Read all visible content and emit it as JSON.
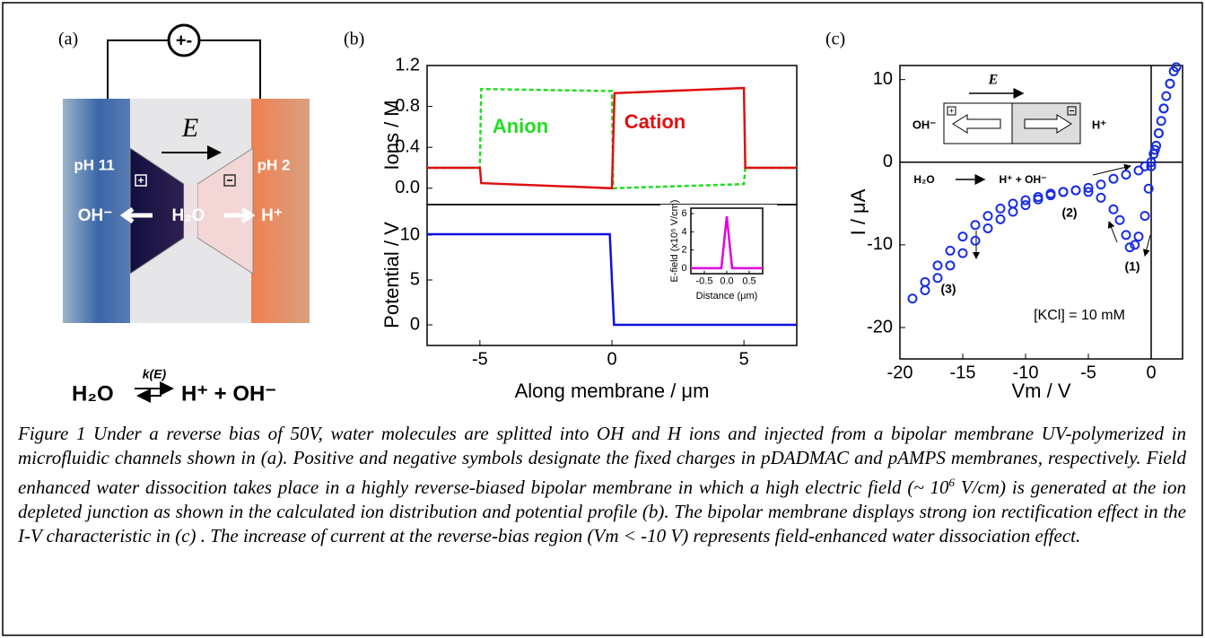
{
  "figure": {
    "panel_labels": [
      "(a)",
      "(b)",
      "(c)"
    ],
    "panel_a": {
      "left_ph": "pH 11",
      "right_ph": "pH 2",
      "field": "E",
      "left_ion": "OH⁻",
      "center": "H₂O",
      "right_ion": "H⁺",
      "equation": {
        "left": "H₂O",
        "rate": "k(E)",
        "right": "H⁺ + OH⁻"
      }
    },
    "caption": [
      "Figure 1 Under a reverse bias of 50V, water molecules are splitted into OH and H ions and injected from a bipolar membrane UV-polymerized in microfluidic channels shown in (a). Positive and negative symbols designate the fixed charges in pDADMAC and pAMPS membranes, respectively. Field enhanced water dissocition takes place in a highly reverse-biased bipolar membrane in which a high electric field (~ 10",
      "6",
      " V/cm) is generated at the ion depleted junction as shown in the calculated ion distribution and potential profile (b). The bipolar membrane displays strong ion rectification effect in the I-V characteristic in (c) . The increase of current at the reverse-bias region (Vm < -10 V) represents field-enhanced water dissociation effect."
    ]
  },
  "chart_data": [
    {
      "type": "line",
      "ylabel": "Ions / M",
      "xlim": [
        -7,
        7
      ],
      "ylim": [
        -0.16,
        1.2
      ],
      "yticks": [
        {
          "value": 0,
          "label": "0.0"
        },
        0.4,
        0.8,
        1.2
      ],
      "series": [
        {
          "name": "Anion",
          "color": "#22dd22",
          "dashed": true,
          "x": [
            -7,
            -5,
            -4.95,
            0,
            0.05,
            5,
            5.05,
            7
          ],
          "values": [
            0.2,
            0.2,
            0.97,
            0.95,
            0,
            0.04,
            0.2,
            0.2
          ]
        },
        {
          "name": "Cation",
          "color": "#e01010",
          "dashed": false,
          "x": [
            -7,
            -5,
            -4.95,
            0,
            0.1,
            5,
            5.05,
            7
          ],
          "values": [
            0.2,
            0.2,
            0.05,
            0,
            0.93,
            0.98,
            0.2,
            0.2
          ]
        }
      ]
    },
    {
      "type": "line",
      "xlabel": "Along membrane / μm",
      "ylabel": "Potential / V",
      "xlim": [
        -7,
        7
      ],
      "ylim": [
        -2.3,
        13.4
      ],
      "xticks": [
        -5,
        0,
        5
      ],
      "yticks": [
        0,
        5,
        10
      ],
      "series": [
        {
          "color": "#1010e0",
          "dashed": false,
          "x": [
            -7,
            -0.08,
            0.08,
            7
          ],
          "values": [
            10.1,
            10.1,
            0,
            0
          ]
        }
      ]
    },
    {
      "type": "line",
      "xlabel": "Distance (μm)",
      "ylabel": "E-field (x10⁵ V/cm)",
      "xlim": [
        -0.8,
        0.8
      ],
      "ylim": [
        -0.6,
        6.6
      ],
      "xticks": [
        -0.5,
        {
          "value": 0,
          "label": "0.0"
        },
        0.5
      ],
      "yticks": [
        0,
        2,
        4,
        6
      ],
      "series": [
        {
          "color": "#e000e0",
          "dashed": false,
          "x": [
            -0.8,
            -0.12,
            0,
            0.12,
            0.8
          ],
          "values": [
            0,
            0,
            5.7,
            0,
            0
          ]
        }
      ]
    },
    {
      "type": "scatter",
      "xlabel": "Vm / V",
      "ylabel": "I / μA",
      "xlim": [
        -20,
        2.5
      ],
      "ylim": [
        -23.8,
        11.7
      ],
      "xticks": [
        -20,
        -15,
        -10,
        -5,
        0
      ],
      "yticks": [
        -20,
        -10,
        0,
        10
      ],
      "zero_lines": true,
      "annotations": [
        "E",
        "OH⁻",
        "H⁺",
        "H₂O",
        "H⁺ + OH⁻",
        "(1)",
        "(2)",
        "(3)",
        "[KCl] = 10 mM"
      ],
      "series": [
        {
          "color": "#1a2ee0",
          "x": [
            2,
            1.8,
            1.5,
            1.2,
            1,
            0.8,
            0.6,
            0.4,
            0.2,
            0,
            -0.5,
            -1,
            -2,
            -3,
            -4,
            -5,
            -6,
            -7,
            -8,
            -9,
            -10,
            -11,
            -12,
            -13,
            -14,
            -15,
            -16,
            -17,
            -18,
            -19,
            -18,
            -17,
            -16,
            -15,
            -14,
            -13,
            -12,
            -11,
            -10,
            -9,
            -8,
            -7,
            -6,
            -5,
            -4,
            -3,
            -2.5,
            -2,
            -1.7,
            -1.3,
            -1,
            -0.5,
            -0.2,
            0,
            0.3,
            0.6,
            1,
            1.5
          ],
          "values": [
            11.5,
            11,
            9.5,
            8,
            6.5,
            5,
            3.5,
            2,
            1,
            0,
            -0.5,
            -1,
            -1.5,
            -2,
            -2.7,
            -3.1,
            -3.4,
            -3.6,
            -3.8,
            -4.2,
            -4.6,
            -5,
            -5.6,
            -6.5,
            -7.6,
            -9,
            -10.7,
            -12.5,
            -14.5,
            -16.5,
            -15.5,
            -14,
            -12.5,
            -11,
            -9.5,
            -8,
            -6.9,
            -6,
            -5.2,
            -4.5,
            -4,
            -3.6,
            -3.4,
            -3.6,
            -4.3,
            -5.7,
            -7,
            -8.8,
            -10.3,
            -10,
            -9,
            -6.5,
            -3.2,
            -0.5,
            1.5,
            3.5,
            6.5,
            9.5
          ]
        }
      ]
    }
  ]
}
